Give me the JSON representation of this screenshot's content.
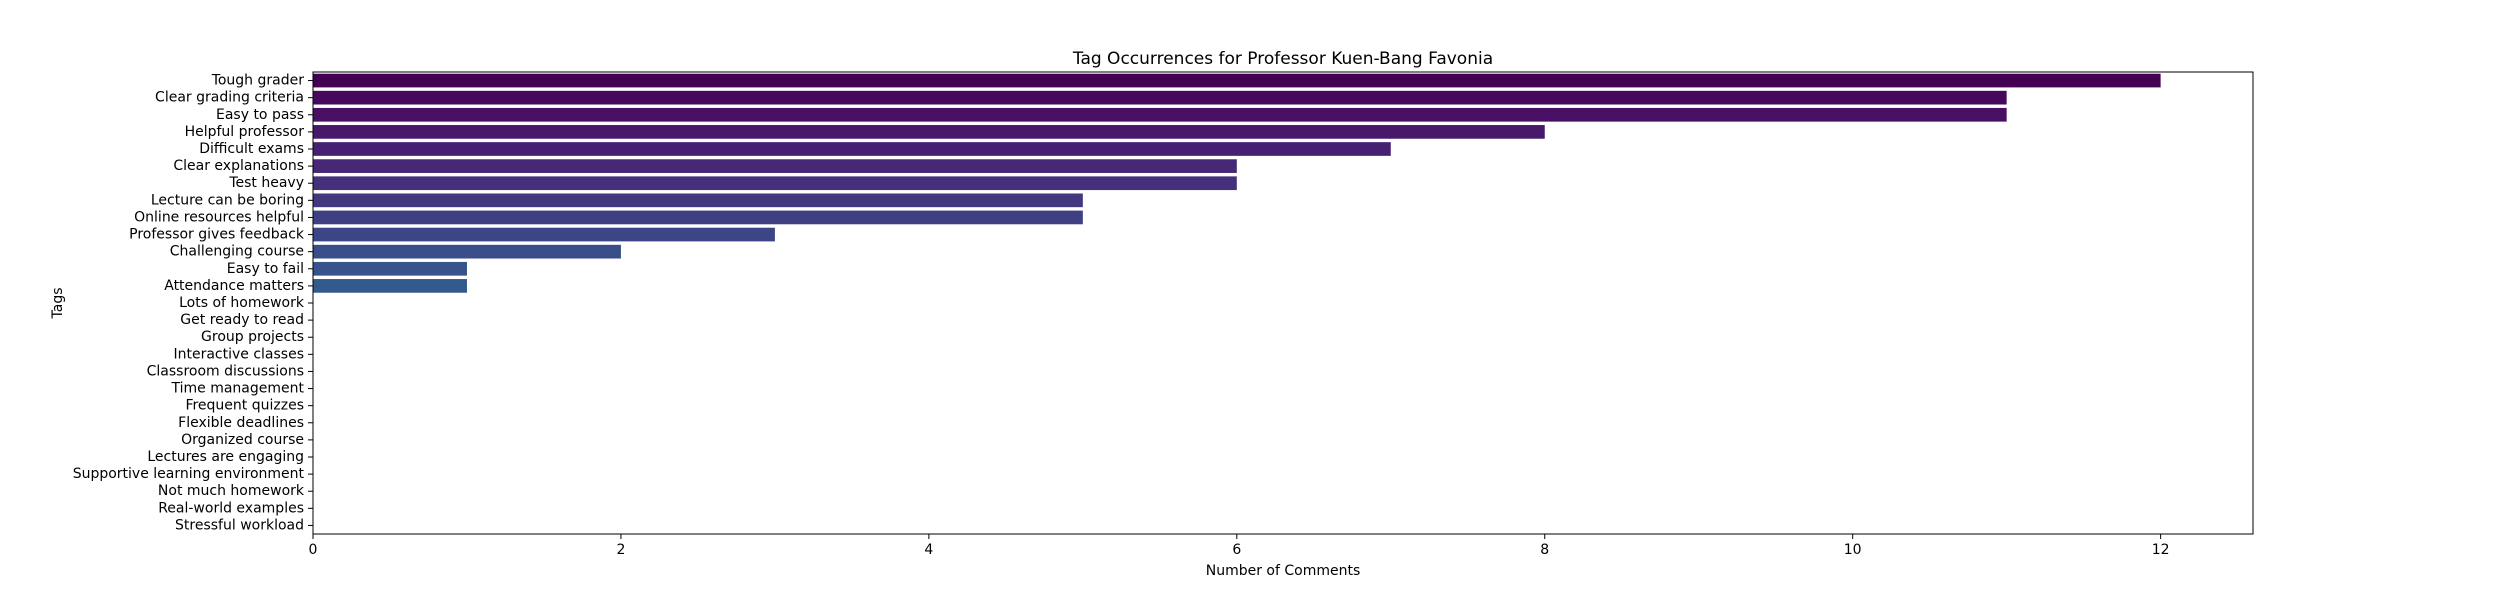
{
  "chart_data": {
    "type": "bar",
    "orientation": "horizontal",
    "title": "Tag Occurrences for Professor Kuen-Bang Favonia",
    "xlabel": "Number of Comments",
    "ylabel": "Tags",
    "xlim": [
      0,
      12.6
    ],
    "xticks": [
      0,
      2,
      4,
      6,
      8,
      10,
      12
    ],
    "grid": false,
    "palette": "viridis",
    "categories": [
      "Tough grader",
      "Clear grading criteria",
      "Easy to pass",
      "Helpful professor",
      "Difficult exams",
      "Clear explanations",
      "Test heavy",
      "Lecture can be boring",
      "Online resources helpful",
      "Professor gives feedback",
      "Challenging course",
      "Easy to fail",
      "Attendance matters",
      "Lots of homework",
      "Get ready to read",
      "Group projects",
      "Interactive classes",
      "Classroom discussions",
      "Time management",
      "Frequent quizzes",
      "Flexible deadlines",
      "Organized course",
      "Lectures are engaging",
      "Supportive learning environment",
      "Not much homework",
      "Real-world examples",
      "Stressful workload"
    ],
    "values": [
      12,
      11,
      11,
      8,
      7,
      6,
      6,
      5,
      5,
      3,
      2,
      1,
      1,
      0,
      0,
      0,
      0,
      0,
      0,
      0,
      0,
      0,
      0,
      0,
      0,
      0,
      0
    ],
    "colors": [
      "#440154",
      "#46085c",
      "#471064",
      "#48186a",
      "#472171",
      "#462876",
      "#44307b",
      "#423880",
      "#3f3f83",
      "#3c4686",
      "#394d89",
      "#36548b",
      "#335a8c",
      "#30608d",
      "#2e668e",
      "#2c6c8e",
      "#2a728f",
      "#28778f",
      "#267d8f",
      "#24838e",
      "#22888e",
      "#218e8d",
      "#1f948c",
      "#1f998a",
      "#21a087",
      "#26a584",
      "#2eab81"
    ]
  }
}
